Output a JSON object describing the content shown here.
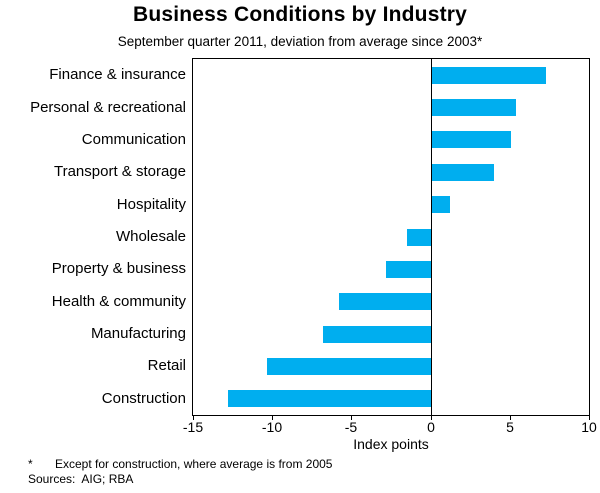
{
  "title": "Business Conditions by Industry",
  "subtitle": "September quarter 2011, deviation from average since 2003*",
  "footnotes": {
    "asterisk_marker": "*",
    "asterisk_text": "Except for construction, where average is from 2005",
    "sources": "Sources:  AIG; RBA"
  },
  "chart_data": {
    "type": "bar",
    "orientation": "horizontal",
    "title": "Business Conditions by Industry",
    "subtitle": "September quarter 2011, deviation from average since 2003*",
    "categories": [
      "Finance & insurance",
      "Personal & recreational",
      "Communication",
      "Transport & storage",
      "Hospitality",
      "Wholesale",
      "Property & business",
      "Health & community",
      "Manufacturing",
      "Retail",
      "Construction"
    ],
    "values": [
      7.3,
      5.4,
      5.1,
      4.0,
      1.2,
      -1.5,
      -2.8,
      -5.8,
      -6.8,
      -10.3,
      -12.8
    ],
    "xlabel": "Index points",
    "ylabel": "",
    "xlim": [
      -15,
      10
    ],
    "xticks": [
      -15,
      -10,
      -5,
      0,
      5,
      10
    ],
    "bar_color": "#00AEEF",
    "grid": false,
    "zero_line": true,
    "legend": "none"
  }
}
